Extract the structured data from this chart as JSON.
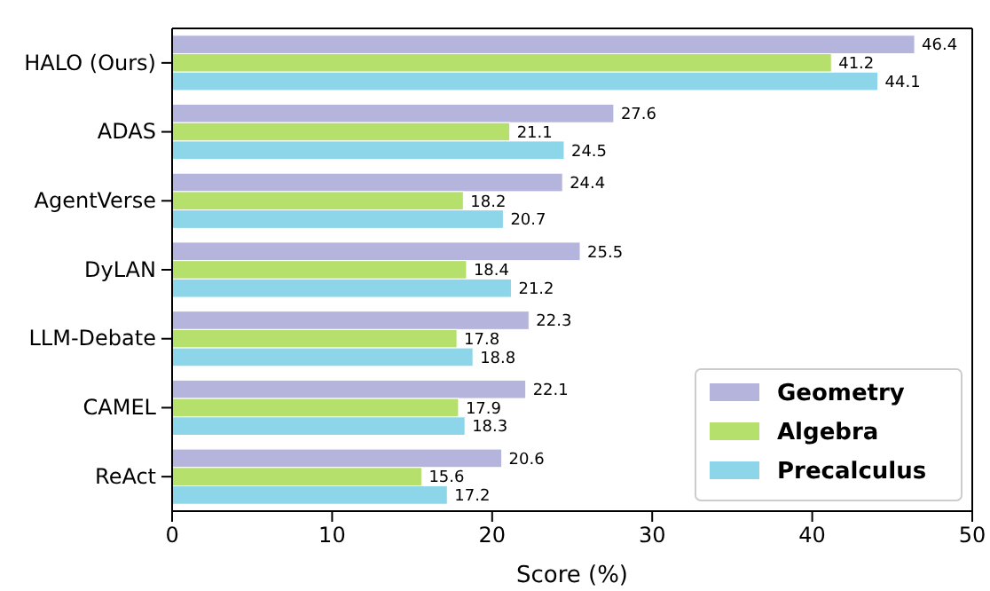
{
  "chart_data": {
    "type": "bar",
    "orientation": "horizontal",
    "xlabel": "Score (%)",
    "categories": [
      "HALO (Ours)",
      "ADAS",
      "AgentVerse",
      "DyLAN",
      "LLM-Debate",
      "CAMEL",
      "ReAct"
    ],
    "series": [
      {
        "name": "Geometry",
        "color": "#b4b4dc",
        "values": [
          46.4,
          27.6,
          24.4,
          25.5,
          22.3,
          22.1,
          20.6
        ]
      },
      {
        "name": "Algebra",
        "color": "#b6e06c",
        "values": [
          41.2,
          21.1,
          18.2,
          18.4,
          17.8,
          17.9,
          15.6
        ]
      },
      {
        "name": "Precalculus",
        "color": "#8dd5e8",
        "values": [
          44.1,
          24.5,
          20.7,
          21.2,
          18.8,
          18.3,
          17.2
        ]
      }
    ],
    "xlim": [
      0,
      50
    ],
    "xticks": [
      0,
      10,
      20,
      30,
      40,
      50
    ],
    "data_labels": true,
    "legend": "bottom right"
  }
}
